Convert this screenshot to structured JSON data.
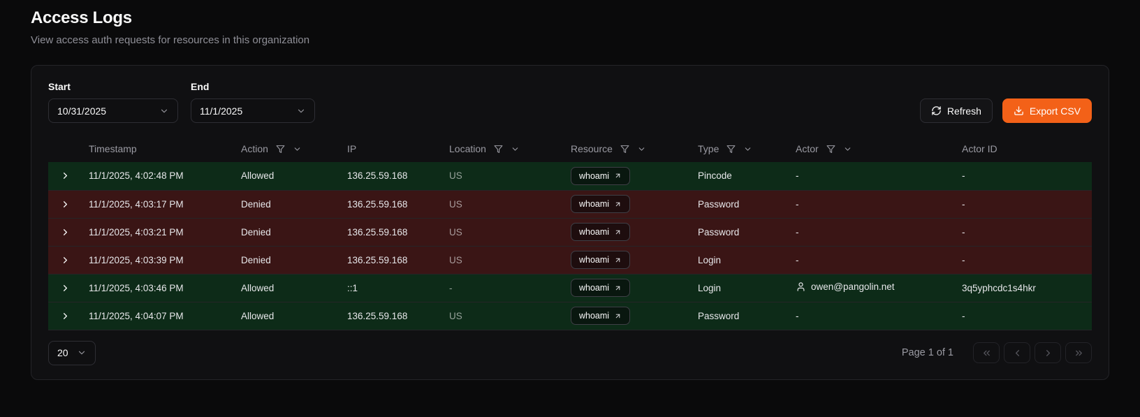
{
  "page": {
    "title": "Access Logs",
    "subtitle": "View access auth requests for resources in this organization"
  },
  "filters": {
    "start": {
      "label": "Start",
      "value": "10/31/2025"
    },
    "end": {
      "label": "End",
      "value": "11/1/2025"
    }
  },
  "toolbar": {
    "refresh_label": "Refresh",
    "export_csv_label": "Export CSV"
  },
  "table": {
    "columns": [
      {
        "label": "Timestamp",
        "filterable": false
      },
      {
        "label": "Action",
        "filterable": true
      },
      {
        "label": "IP",
        "filterable": false
      },
      {
        "label": "Location",
        "filterable": true
      },
      {
        "label": "Resource",
        "filterable": true
      },
      {
        "label": "Type",
        "filterable": true
      },
      {
        "label": "Actor",
        "filterable": true
      },
      {
        "label": "Actor ID",
        "filterable": false
      }
    ],
    "rows": [
      {
        "timestamp": "11/1/2025, 4:02:48 PM",
        "action": "Allowed",
        "ip": "136.25.59.168",
        "location": "US",
        "resource": "whoami",
        "type": "Pincode",
        "actor": "-",
        "actor_id": "-",
        "actor_has_icon": false
      },
      {
        "timestamp": "11/1/2025, 4:03:17 PM",
        "action": "Denied",
        "ip": "136.25.59.168",
        "location": "US",
        "resource": "whoami",
        "type": "Password",
        "actor": "-",
        "actor_id": "-",
        "actor_has_icon": false
      },
      {
        "timestamp": "11/1/2025, 4:03:21 PM",
        "action": "Denied",
        "ip": "136.25.59.168",
        "location": "US",
        "resource": "whoami",
        "type": "Password",
        "actor": "-",
        "actor_id": "-",
        "actor_has_icon": false
      },
      {
        "timestamp": "11/1/2025, 4:03:39 PM",
        "action": "Denied",
        "ip": "136.25.59.168",
        "location": "US",
        "resource": "whoami",
        "type": "Login",
        "actor": "-",
        "actor_id": "-",
        "actor_has_icon": false
      },
      {
        "timestamp": "11/1/2025, 4:03:46 PM",
        "action": "Allowed",
        "ip": "::1",
        "location": "-",
        "resource": "whoami",
        "type": "Login",
        "actor": "owen@pangolin.net",
        "actor_id": "3q5yphcdc1s4hkr",
        "actor_has_icon": true
      },
      {
        "timestamp": "11/1/2025, 4:04:07 PM",
        "action": "Allowed",
        "ip": "136.25.59.168",
        "location": "US",
        "resource": "whoami",
        "type": "Password",
        "actor": "-",
        "actor_id": "-",
        "actor_has_icon": false
      }
    ]
  },
  "pagination": {
    "page_size": "20",
    "page_info": "Page 1 of 1"
  },
  "icons": {
    "refresh": "circular-arrows",
    "export_csv": "download-arrow",
    "column_filter": "funnel",
    "column_menu": "chevron-down",
    "expand_row": "chevron-right",
    "resource_link": "arrow-up-right",
    "actor": "person",
    "pagination": [
      "chevrons-left",
      "chevron-left",
      "chevron-right",
      "chevrons-right"
    ]
  },
  "colors": {
    "accent": "#f36118",
    "row_allowed": "#0d2b18",
    "row_denied": "#3a1515"
  }
}
